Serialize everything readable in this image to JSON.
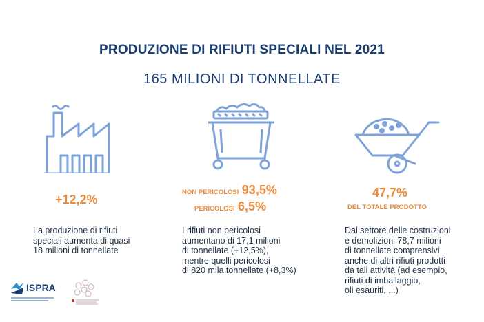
{
  "header": {
    "title": "PRODUZIONE DI RIFIUTI SPECIALI NEL 2021",
    "subtitle": "165 MILIONI DI TONNELLATE"
  },
  "columns": [
    {
      "icon": "factory-icon",
      "stat": "+12,2%",
      "description": "La produzione di rifiuti\nspeciali aumenta di quasi\n18 milioni di tonnellate"
    },
    {
      "icon": "dumpster-icon",
      "non_hazardous_label": "NON PERICOLOSI",
      "non_hazardous_value": "93,5%",
      "hazardous_label": "PERICOLOSI",
      "hazardous_value": "6,5%",
      "description": "I rifiuti non pericolosi\naumentano di 17,1 milioni\ndi tonnellate (+12,5%),\nmentre quelli pericolosi\ndi 820 mila tonnellate (+8,3%)"
    },
    {
      "icon": "wheelbarrow-icon",
      "stat": "47,7%",
      "stat_caption": "DEL TOTALE PRODOTTO",
      "description": "Dal settore delle costruzioni\ne demolizioni 78,7 milioni\ndi tonnellate comprensivi\nanche di altri rifiuti prodotti\nda tali attività (ad esempio,\nrifiuti di imballaggio,\noli esauriti, ...)"
    }
  ],
  "footer": {
    "logo_text": "ISPRA",
    "colors": {
      "navy": "#1b3f72",
      "orange": "#e98b3a",
      "icon_blue": "#7ea3d8"
    }
  }
}
